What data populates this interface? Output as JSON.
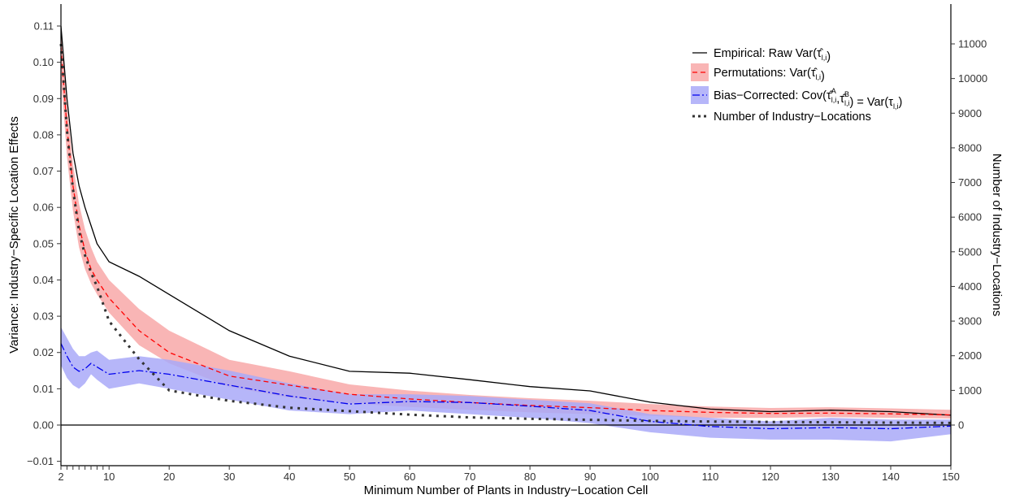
{
  "chart_data": {
    "type": "line",
    "xlabel": "Minimum Number of Plants in Industry−Location Cell",
    "ylabel": "Variance: Industry−Specific Location Effects",
    "y2label": "Number of Industry−Locations",
    "xlim": [
      2,
      150
    ],
    "ylim": [
      -0.01,
      0.112
    ],
    "y2lim": [
      -1100,
      12100
    ],
    "x_ticks": [
      2,
      10,
      20,
      30,
      40,
      50,
      60,
      70,
      80,
      90,
      100,
      110,
      120,
      130,
      140,
      150
    ],
    "x_minor_ticks": [
      3,
      4,
      5,
      6,
      7,
      8,
      9
    ],
    "y_ticks": [
      "−0.01",
      "0.00",
      "0.01",
      "0.02",
      "0.03",
      "0.04",
      "0.05",
      "0.06",
      "0.07",
      "0.08",
      "0.09",
      "0.10",
      "0.11"
    ],
    "y_tick_values": [
      -0.01,
      0,
      0.01,
      0.02,
      0.03,
      0.04,
      0.05,
      0.06,
      0.07,
      0.08,
      0.09,
      0.1,
      0.11
    ],
    "y2_ticks": [
      0,
      1000,
      2000,
      3000,
      4000,
      5000,
      6000,
      7000,
      8000,
      9000,
      10000,
      11000
    ],
    "legend_position": "top-right",
    "grid": false,
    "series": [
      {
        "name": "Empirical: Raw Var(τ̂l,i)",
        "axis": "left",
        "style": "solid",
        "color": "#000000",
        "x": [
          2,
          3,
          4,
          5,
          6,
          7,
          8,
          10,
          15,
          20,
          30,
          40,
          50,
          60,
          70,
          80,
          90,
          100,
          110,
          120,
          130,
          140,
          150
        ],
        "values": [
          0.11,
          0.09,
          0.075,
          0.066,
          0.06,
          0.055,
          0.05,
          0.045,
          0.041,
          0.036,
          0.026,
          0.019,
          0.0148,
          0.0143,
          0.0125,
          0.0106,
          0.0094,
          0.0063,
          0.0044,
          0.0037,
          0.0041,
          0.0037,
          0.0027
        ]
      },
      {
        "name": "Permutations: Var(τ̂l,i)",
        "axis": "left",
        "style": "dashed",
        "color": "#ff0000",
        "band_color": "#f8a8a8",
        "x": [
          2,
          3,
          4,
          5,
          6,
          7,
          8,
          10,
          15,
          20,
          30,
          40,
          50,
          60,
          70,
          80,
          90,
          100,
          110,
          120,
          130,
          140,
          150
        ],
        "values": [
          0.104,
          0.082,
          0.066,
          0.055,
          0.048,
          0.043,
          0.04,
          0.035,
          0.026,
          0.02,
          0.0135,
          0.011,
          0.0085,
          0.0072,
          0.0062,
          0.0054,
          0.0048,
          0.004,
          0.0035,
          0.0032,
          0.0033,
          0.0031,
          0.0028
        ],
        "lower": [
          0.096,
          0.074,
          0.059,
          0.049,
          0.043,
          0.039,
          0.036,
          0.031,
          0.022,
          0.017,
          0.0105,
          0.0075,
          0.006,
          0.005,
          0.0042,
          0.0035,
          0.003,
          0.0025,
          0.002,
          0.002,
          0.0022,
          0.002,
          0.0018
        ],
        "upper": [
          0.11,
          0.088,
          0.072,
          0.061,
          0.054,
          0.049,
          0.045,
          0.04,
          0.032,
          0.026,
          0.018,
          0.0148,
          0.0112,
          0.0095,
          0.0083,
          0.0074,
          0.0067,
          0.0058,
          0.0051,
          0.0047,
          0.0049,
          0.0046,
          0.0042
        ]
      },
      {
        "name": "Bias−Corrected: Cov(τ̂Al,i, τ̂Bl,i) = Var(τl,i)",
        "axis": "left",
        "style": "dotdash",
        "color": "#0000ee",
        "band_color": "#a9a9f8",
        "x": [
          2,
          3,
          4,
          5,
          6,
          7,
          8,
          10,
          15,
          20,
          30,
          40,
          50,
          60,
          70,
          80,
          90,
          100,
          110,
          120,
          130,
          140,
          150
        ],
        "values": [
          0.0225,
          0.019,
          0.016,
          0.0148,
          0.0155,
          0.017,
          0.016,
          0.014,
          0.015,
          0.014,
          0.011,
          0.008,
          0.0058,
          0.0065,
          0.0062,
          0.0052,
          0.004,
          0.001,
          -0.0004,
          -0.001,
          -0.0007,
          -0.001,
          -0.0003
        ],
        "lower": [
          0.0165,
          0.013,
          0.011,
          0.01,
          0.0115,
          0.014,
          0.0125,
          0.01,
          0.0115,
          0.01,
          0.007,
          0.004,
          0.003,
          0.004,
          0.003,
          0.002,
          0.0005,
          -0.002,
          -0.0035,
          -0.004,
          -0.004,
          -0.0045,
          -0.0025
        ],
        "upper": [
          0.027,
          0.024,
          0.021,
          0.019,
          0.019,
          0.02,
          0.0205,
          0.018,
          0.019,
          0.018,
          0.015,
          0.0115,
          0.0085,
          0.0085,
          0.008,
          0.007,
          0.006,
          0.003,
          0.002,
          0.001,
          0.002,
          0.0015,
          0.0015
        ]
      },
      {
        "name": "Number of Industry−Locations",
        "axis": "right",
        "style": "dotted",
        "color": "#333333",
        "x": [
          2,
          3,
          4,
          5,
          6,
          7,
          8,
          10,
          15,
          20,
          30,
          40,
          50,
          60,
          70,
          80,
          90,
          100,
          110,
          120,
          130,
          140,
          150
        ],
        "values": [
          11000,
          8500,
          6800,
          5600,
          4900,
          4400,
          4000,
          3000,
          1900,
          1000,
          700,
          500,
          400,
          300,
          220,
          180,
          150,
          120,
          100,
          90,
          80,
          70,
          60
        ]
      }
    ]
  }
}
